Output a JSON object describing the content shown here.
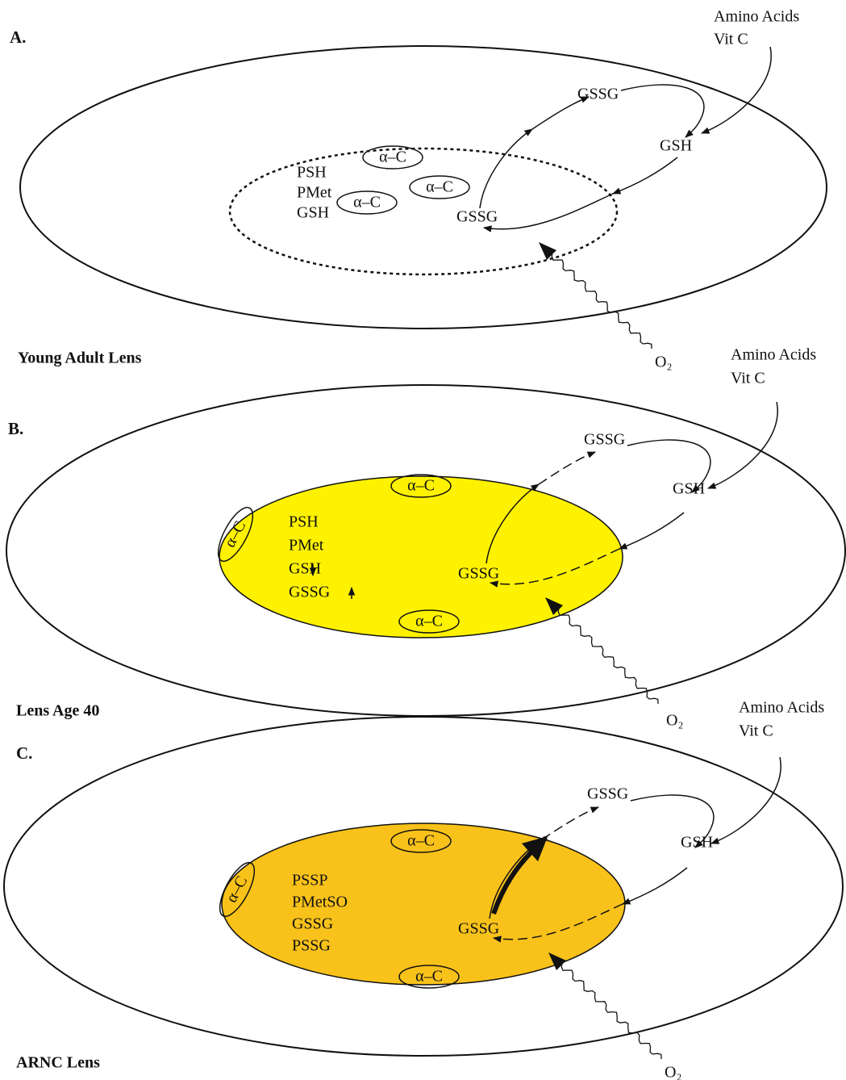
{
  "panels": [
    {
      "letter": "A.",
      "caption": "Young Adult Lens",
      "inputs": [
        "Amino Acids",
        "Vit C"
      ],
      "outer_gssg": "GSSG",
      "outer_gsh": "GSH",
      "inner_gssg": "GSSG",
      "oxidant": "O₂",
      "crystallins": [
        "α–C",
        "α–C",
        "α–C"
      ],
      "inner_contents": [
        "PSH",
        "PMet",
        "GSH"
      ]
    },
    {
      "letter": "B.",
      "caption": "Lens Age 40",
      "inputs": [
        "Amino Acids",
        "Vit C"
      ],
      "outer_gssg": "GSSG",
      "outer_gsh": "GSH",
      "inner_gssg": "GSSG",
      "oxidant": "O₂",
      "crystallins": [
        "α–C",
        "α–C",
        "α–C"
      ],
      "inner_contents": [
        "PSH",
        "PMet",
        "GSH",
        "GSSG"
      ]
    },
    {
      "letter": "C.",
      "caption": "ARNC Lens",
      "inputs": [
        "Amino Acids",
        "Vit C"
      ],
      "outer_gssg": "GSSG",
      "outer_gsh": "GSH",
      "inner_gssg": "GSSG",
      "oxidant": "O₂",
      "crystallins": [
        "α–C",
        "α–C",
        "α–C"
      ],
      "inner_contents": [
        "PSSP",
        "PMetSO",
        "GSSG",
        "PSSG"
      ]
    }
  ]
}
